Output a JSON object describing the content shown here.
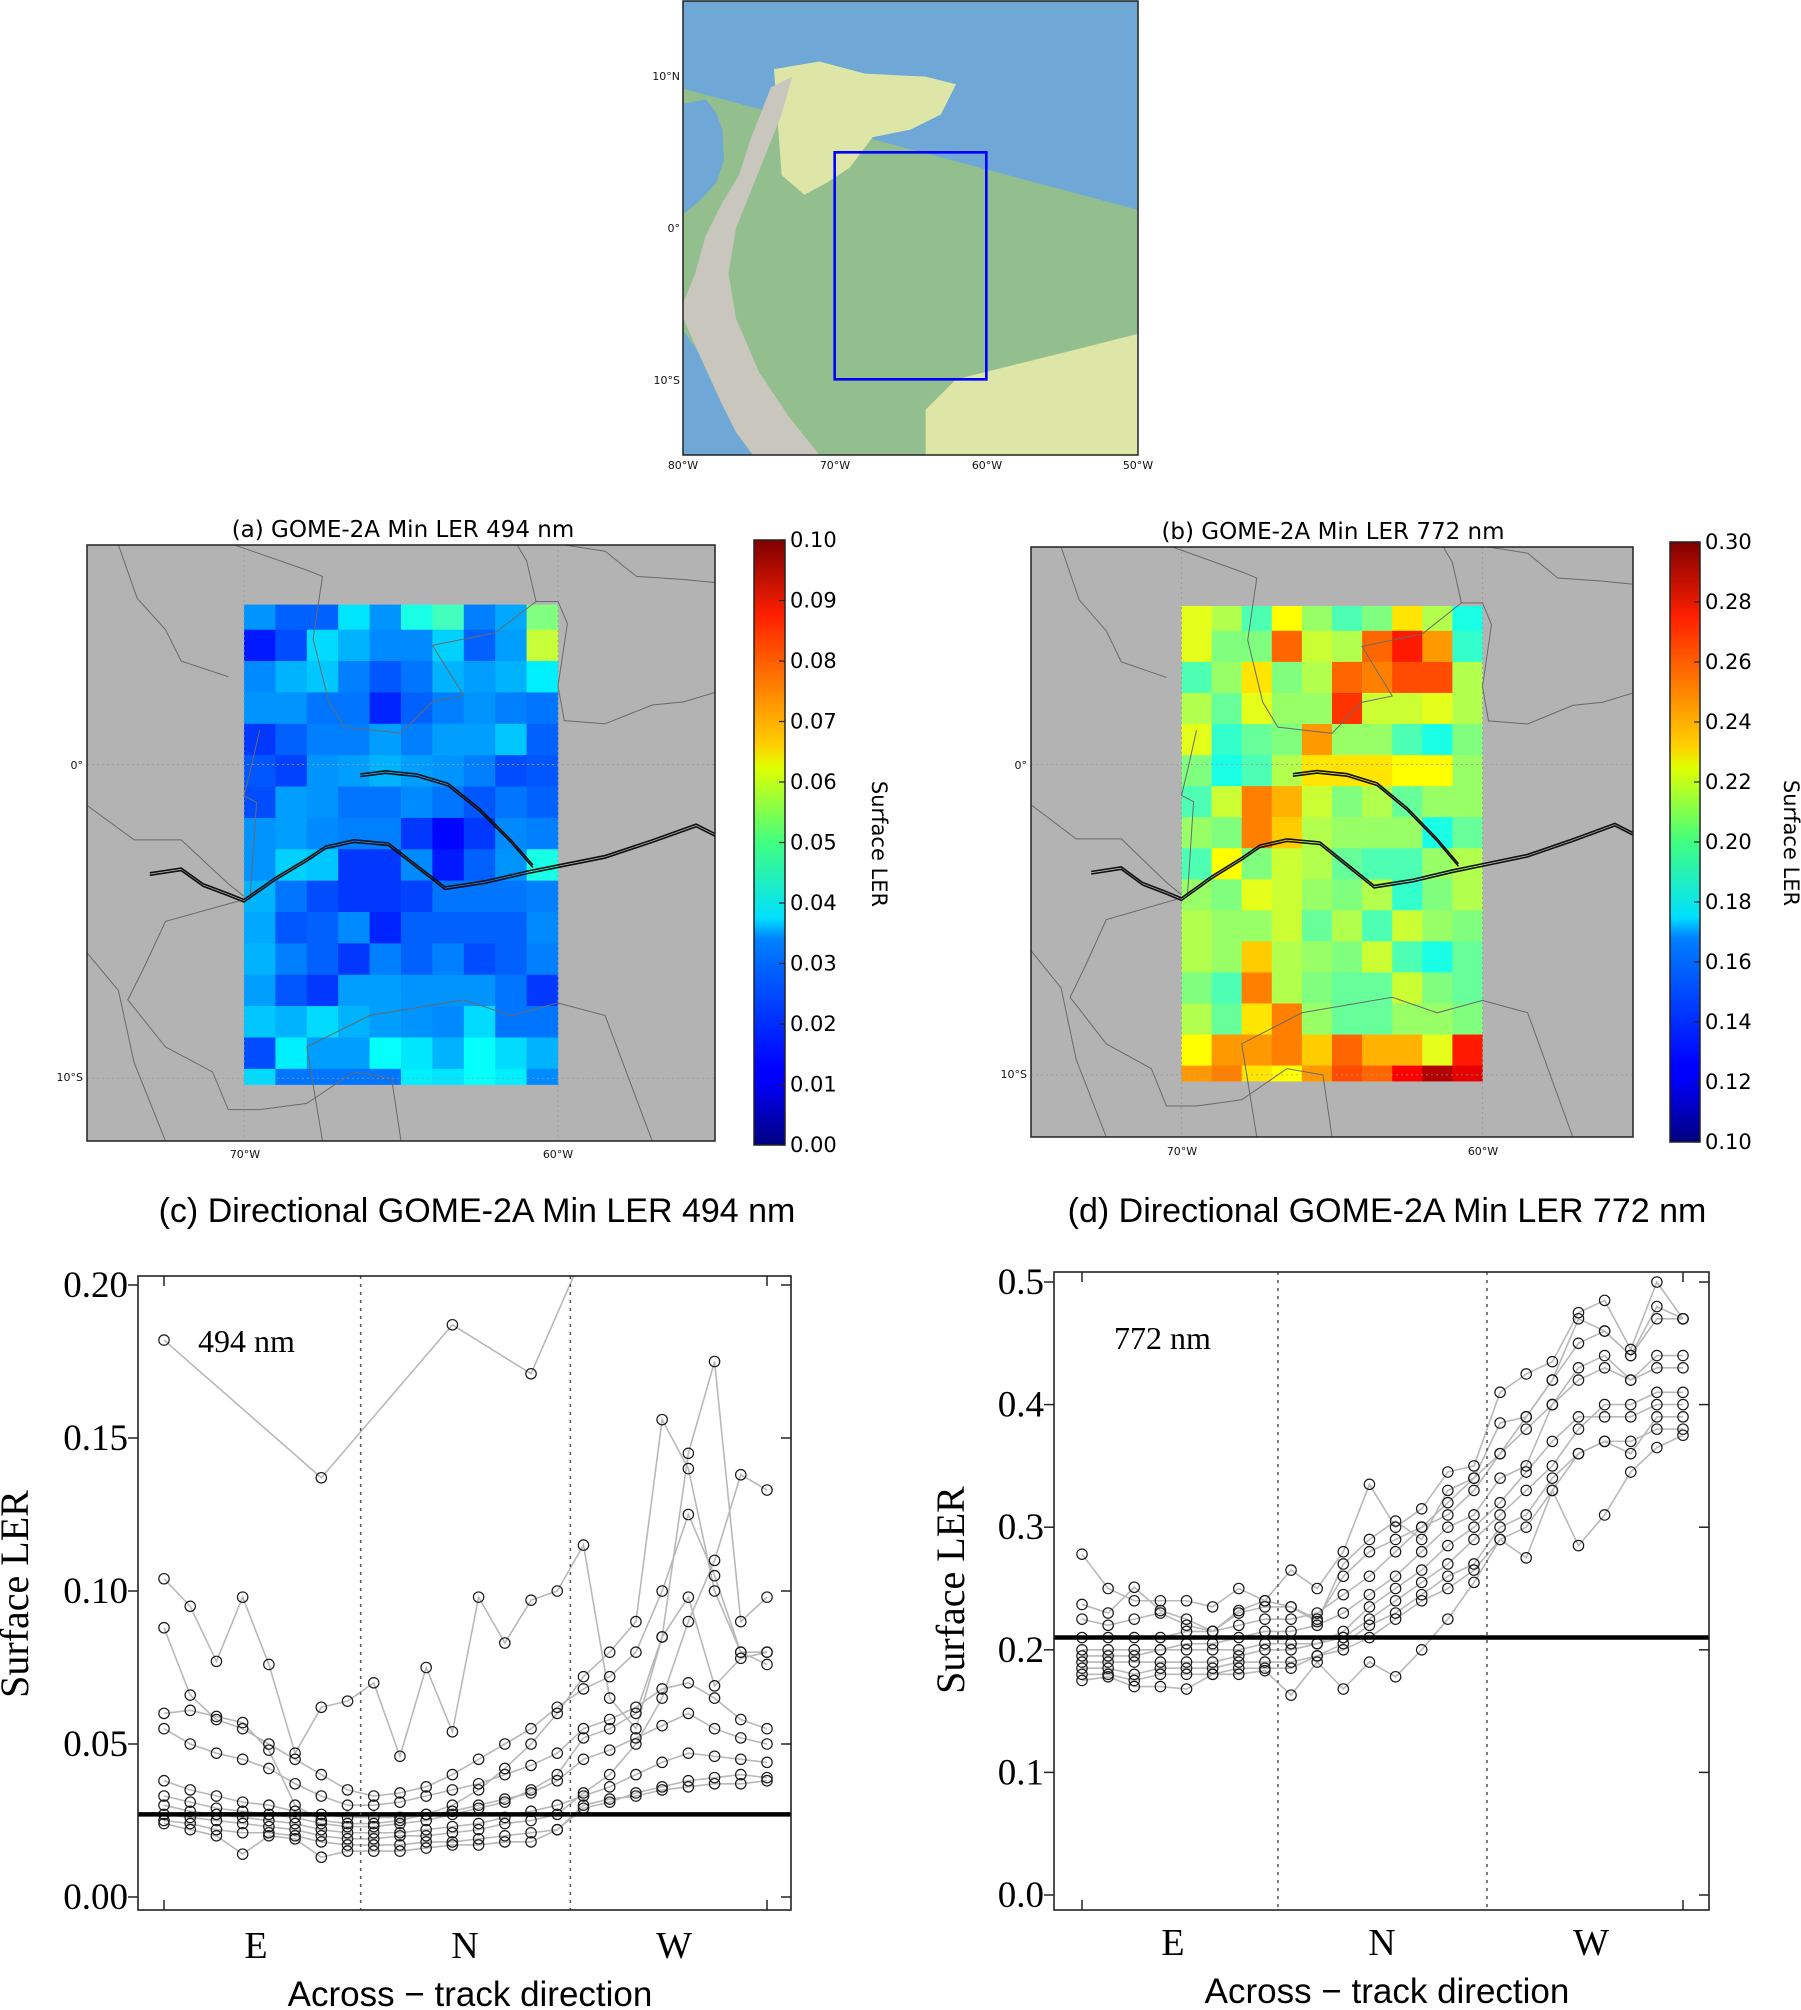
{
  "overview_map": {
    "lat_labels": [
      "10°N",
      "0°",
      "10°S"
    ],
    "lon_labels": [
      "80°W",
      "70°W",
      "60°W",
      "50°W"
    ],
    "extent": {
      "lon": [
        -80,
        -50
      ],
      "lat": [
        -15,
        15
      ]
    },
    "region_box": {
      "lon": [
        -70,
        -60
      ],
      "lat": [
        -10,
        5
      ]
    },
    "colors": {
      "ocean": "#6fa7d6",
      "lowland": "#93bf8f",
      "savanna": "#dde6a6",
      "andes": "#c9c6bd",
      "box": "#0000ff"
    }
  },
  "chart_data": [
    {
      "type": "heatmap",
      "id": "a",
      "title": "(a)  GOME-2A Min LER 494 nm",
      "colorbar_label": "Surface LER",
      "vmin": 0.0,
      "vmax": 0.1,
      "colorbar_ticks": [
        "0.00",
        "0.01",
        "0.02",
        "0.03",
        "0.04",
        "0.05",
        "0.06",
        "0.07",
        "0.08",
        "0.09",
        "0.10"
      ],
      "x_tick_labels": [
        "70°W",
        "60°W"
      ],
      "y_tick_labels": [
        "0°",
        "10°S"
      ],
      "extent": {
        "lon": [
          -75,
          -55
        ],
        "lat": [
          -12,
          7
        ]
      },
      "lon_edges": [
        -70,
        -69,
        -68,
        -67,
        -66,
        -65,
        -64,
        -63,
        -62,
        -61,
        -60
      ],
      "lat_edges": [
        5.1,
        4.3,
        3.3,
        2.3,
        1.3,
        0.3,
        -0.7,
        -1.7,
        -2.7,
        -3.7,
        -4.7,
        -5.7,
        -6.7,
        -7.7,
        -8.7,
        -9.7,
        -10.2
      ],
      "background": "#b3b3b3",
      "values": [
        [
          0.027,
          0.022,
          0.022,
          0.035,
          0.027,
          0.04,
          0.044,
          0.025,
          0.029,
          0.05
        ],
        [
          0.015,
          0.02,
          0.034,
          0.03,
          0.026,
          0.026,
          0.033,
          0.022,
          0.028,
          0.057
        ],
        [
          0.026,
          0.03,
          0.032,
          0.025,
          0.021,
          0.024,
          0.03,
          0.028,
          0.03,
          0.036
        ],
        [
          0.027,
          0.027,
          0.024,
          0.024,
          0.016,
          0.022,
          0.025,
          0.027,
          0.025,
          0.024
        ],
        [
          0.018,
          0.022,
          0.025,
          0.025,
          0.028,
          0.025,
          0.028,
          0.028,
          0.032,
          0.022
        ],
        [
          0.021,
          0.019,
          0.027,
          0.028,
          0.03,
          0.028,
          0.027,
          0.025,
          0.02,
          0.021
        ],
        [
          0.02,
          0.028,
          0.027,
          0.024,
          0.024,
          0.026,
          0.024,
          0.021,
          0.024,
          0.022
        ],
        [
          0.027,
          0.028,
          0.026,
          0.025,
          0.025,
          0.018,
          0.013,
          0.018,
          0.026,
          0.025
        ],
        [
          0.027,
          0.033,
          0.032,
          0.018,
          0.018,
          0.026,
          0.015,
          0.022,
          0.027,
          0.04
        ],
        [
          0.03,
          0.024,
          0.02,
          0.018,
          0.018,
          0.019,
          0.024,
          0.024,
          0.024,
          0.025
        ],
        [
          0.029,
          0.021,
          0.022,
          0.026,
          0.016,
          0.022,
          0.022,
          0.022,
          0.022,
          0.026
        ],
        [
          0.03,
          0.025,
          0.022,
          0.018,
          0.025,
          0.022,
          0.025,
          0.02,
          0.022,
          0.025
        ],
        [
          0.028,
          0.021,
          0.018,
          0.028,
          0.028,
          0.027,
          0.027,
          0.027,
          0.024,
          0.018
        ],
        [
          0.032,
          0.03,
          0.034,
          0.03,
          0.028,
          0.027,
          0.026,
          0.034,
          0.024,
          0.024
        ],
        [
          0.02,
          0.036,
          0.028,
          0.028,
          0.038,
          0.035,
          0.03,
          0.038,
          0.034,
          0.03
        ],
        [
          0.034,
          0.024,
          0.024,
          0.024,
          0.024,
          0.036,
          0.035,
          0.038,
          0.036,
          0.026
        ]
      ]
    },
    {
      "type": "heatmap",
      "id": "b",
      "title": "(b)  GOME-2A Min LER 772 nm",
      "colorbar_label": "Surface LER",
      "vmin": 0.1,
      "vmax": 0.3,
      "colorbar_ticks": [
        "0.10",
        "0.12",
        "0.14",
        "0.16",
        "0.18",
        "0.20",
        "0.22",
        "0.24",
        "0.26",
        "0.28",
        "0.30"
      ],
      "x_tick_labels": [
        "70°W",
        "60°W"
      ],
      "y_tick_labels": [
        "0°",
        "10°S"
      ],
      "extent": {
        "lon": [
          -75,
          -55
        ],
        "lat": [
          -12,
          7
        ]
      },
      "lon_edges": [
        -70,
        -69,
        -68,
        -67,
        -66,
        -65,
        -64,
        -63,
        -62,
        -61,
        -60
      ],
      "lat_edges": [
        5.1,
        4.3,
        3.3,
        2.3,
        1.3,
        0.3,
        -0.7,
        -1.7,
        -2.7,
        -3.7,
        -4.7,
        -5.7,
        -6.7,
        -7.7,
        -8.7,
        -9.7,
        -10.2
      ],
      "background": "#b3b3b3",
      "values": [
        [
          0.22,
          0.21,
          0.19,
          0.225,
          0.205,
          0.19,
          0.2,
          0.23,
          0.21,
          0.18
        ],
        [
          0.22,
          0.2,
          0.2,
          0.255,
          0.215,
          0.21,
          0.255,
          0.27,
          0.245,
          0.185
        ],
        [
          0.19,
          0.205,
          0.23,
          0.2,
          0.21,
          0.255,
          0.25,
          0.26,
          0.26,
          0.21
        ],
        [
          0.21,
          0.195,
          0.22,
          0.205,
          0.205,
          0.265,
          0.215,
          0.215,
          0.22,
          0.21
        ],
        [
          0.22,
          0.185,
          0.195,
          0.2,
          0.245,
          0.205,
          0.205,
          0.19,
          0.18,
          0.2
        ],
        [
          0.2,
          0.18,
          0.19,
          0.21,
          0.23,
          0.23,
          0.23,
          0.225,
          0.225,
          0.205
        ],
        [
          0.19,
          0.215,
          0.25,
          0.24,
          0.215,
          0.2,
          0.21,
          0.195,
          0.205,
          0.205
        ],
        [
          0.205,
          0.2,
          0.25,
          0.235,
          0.21,
          0.205,
          0.205,
          0.205,
          0.18,
          0.195
        ],
        [
          0.19,
          0.225,
          0.2,
          0.215,
          0.21,
          0.195,
          0.19,
          0.19,
          0.205,
          0.21
        ],
        [
          0.205,
          0.2,
          0.22,
          0.215,
          0.205,
          0.2,
          0.21,
          0.185,
          0.2,
          0.21
        ],
        [
          0.21,
          0.205,
          0.205,
          0.215,
          0.195,
          0.21,
          0.19,
          0.215,
          0.205,
          0.2
        ],
        [
          0.21,
          0.205,
          0.235,
          0.21,
          0.205,
          0.2,
          0.215,
          0.19,
          0.18,
          0.195
        ],
        [
          0.2,
          0.19,
          0.25,
          0.21,
          0.2,
          0.195,
          0.195,
          0.215,
          0.2,
          0.195
        ],
        [
          0.21,
          0.195,
          0.23,
          0.25,
          0.205,
          0.195,
          0.195,
          0.205,
          0.205,
          0.2
        ],
        [
          0.225,
          0.245,
          0.245,
          0.25,
          0.235,
          0.255,
          0.24,
          0.24,
          0.22,
          0.27
        ],
        [
          0.245,
          0.25,
          0.23,
          0.225,
          0.245,
          0.26,
          0.255,
          0.275,
          0.29,
          0.28
        ]
      ]
    },
    {
      "type": "line",
      "id": "c",
      "title": "(c) Directional GOME-2A Min LER 494 nm",
      "annotation": "494 nm",
      "ylabel": "Surface LER",
      "xlabel": "Across −  track direction",
      "direction_labels": [
        "E",
        "N",
        "W"
      ],
      "ylim": [
        0.0,
        0.2
      ],
      "yticks": [
        "0.00",
        "0.05",
        "0.10",
        "0.15",
        "0.20"
      ],
      "x": [
        1,
        2,
        3,
        4,
        5,
        6,
        7,
        8,
        9,
        10,
        11,
        12,
        13,
        14,
        15,
        16,
        17,
        18,
        19,
        20,
        21,
        22,
        23,
        24
      ],
      "dividers_after": [
        8,
        16
      ],
      "reference_line": 0.027,
      "series": [
        [
          0.182,
          null,
          null,
          null,
          null,
          null,
          0.137,
          null,
          null,
          null,
          null,
          0.187,
          null,
          null,
          0.171,
          null,
          null,
          0.23,
          null,
          null,
          null,
          null,
          null,
          null
        ],
        [
          0.03,
          0.028,
          0.027,
          0.026,
          0.025,
          0.024,
          0.022,
          0.021,
          0.021,
          0.021,
          0.022,
          0.023,
          0.024,
          0.026,
          0.028,
          0.03,
          0.033,
          0.036,
          0.04,
          0.044,
          0.047,
          0.046,
          0.045,
          0.044
        ],
        [
          0.025,
          0.024,
          0.022,
          0.021,
          0.021,
          0.02,
          0.018,
          0.017,
          0.017,
          0.017,
          0.018,
          0.018,
          0.019,
          0.02,
          0.021,
          0.022,
          0.029,
          0.031,
          0.034,
          0.036,
          0.038,
          0.039,
          0.04,
          0.039
        ],
        [
          0.038,
          0.035,
          0.033,
          0.031,
          0.03,
          0.028,
          0.027,
          0.026,
          0.026,
          0.026,
          0.027,
          0.028,
          0.03,
          0.032,
          0.034,
          0.038,
          0.045,
          0.048,
          0.052,
          0.056,
          0.06,
          0.055,
          0.052,
          0.05
        ],
        [
          0.055,
          0.05,
          0.047,
          0.045,
          0.042,
          0.037,
          0.033,
          0.03,
          0.03,
          0.031,
          0.033,
          0.035,
          0.037,
          0.04,
          0.043,
          0.047,
          0.055,
          0.058,
          0.062,
          0.068,
          0.07,
          0.065,
          0.058,
          0.055
        ],
        [
          0.088,
          0.066,
          0.058,
          0.055,
          0.05,
          0.045,
          0.04,
          0.035,
          0.033,
          0.034,
          0.036,
          0.04,
          0.045,
          0.05,
          0.055,
          0.062,
          0.068,
          0.072,
          0.08,
          0.1,
          0.125,
          0.105,
          0.08,
          0.076
        ],
        [
          0.027,
          0.026,
          0.025,
          0.024,
          0.023,
          0.022,
          0.02,
          0.019,
          0.019,
          0.02,
          0.02,
          0.021,
          0.022,
          0.024,
          0.025,
          0.027,
          0.034,
          0.04,
          0.05,
          0.065,
          0.09,
          0.11,
          0.138,
          0.133
        ],
        [
          0.033,
          0.031,
          0.029,
          0.028,
          0.027,
          0.026,
          0.024,
          0.023,
          0.023,
          0.024,
          0.025,
          0.027,
          0.029,
          0.031,
          0.035,
          0.04,
          0.052,
          0.055,
          0.06,
          0.085,
          0.145,
          0.175,
          0.09,
          0.098
        ],
        [
          0.06,
          0.061,
          0.059,
          0.057,
          0.048,
          0.03,
          0.025,
          0.024,
          0.024,
          0.025,
          0.027,
          0.03,
          0.035,
          0.042,
          0.05,
          0.06,
          0.072,
          0.08,
          0.09,
          0.156,
          0.14,
          0.1,
          0.08,
          0.08
        ],
        [
          0.024,
          0.022,
          0.02,
          0.014,
          0.02,
          0.019,
          0.013,
          0.015,
          0.015,
          0.015,
          0.016,
          0.017,
          0.017,
          0.018,
          0.018,
          0.022,
          0.03,
          0.032,
          0.033,
          0.035,
          0.036,
          0.037,
          0.037,
          0.038
        ],
        [
          0.104,
          0.095,
          0.077,
          0.098,
          0.076,
          0.047,
          0.062,
          0.064,
          0.07,
          0.046,
          0.075,
          0.054,
          0.098,
          0.083,
          0.097,
          0.1,
          0.115,
          0.065,
          0.055,
          0.085,
          0.098,
          0.069,
          0.078,
          0.08
        ]
      ]
    },
    {
      "type": "line",
      "id": "d",
      "title": "(d) Directional GOME-2A Min LER 772 nm",
      "annotation": "772 nm",
      "ylabel": "Surface LER",
      "xlabel": "Across −  track direction",
      "direction_labels": [
        "E",
        "N",
        "W"
      ],
      "ylim": [
        0.0,
        0.5
      ],
      "yticks": [
        "0.0",
        "0.1",
        "0.2",
        "0.3",
        "0.4",
        "0.5"
      ],
      "x": [
        1,
        2,
        3,
        4,
        5,
        6,
        7,
        8,
        9,
        10,
        11,
        12,
        13,
        14,
        15,
        16,
        17,
        18,
        19,
        20,
        21,
        22,
        23,
        24
      ],
      "dividers_after": [
        8,
        16
      ],
      "reference_line": 0.21,
      "series": [
        [
          0.278,
          0.25,
          0.24,
          0.24,
          0.24,
          0.235,
          0.25,
          0.24,
          0.265,
          0.25,
          0.28,
          0.335,
          0.3,
          0.315,
          0.345,
          0.35,
          0.41,
          0.425,
          0.435,
          0.475,
          0.485,
          0.445,
          0.5,
          0.47
        ],
        [
          0.19,
          0.19,
          0.19,
          0.19,
          0.19,
          0.19,
          0.195,
          0.2,
          0.2,
          0.205,
          0.21,
          0.225,
          0.24,
          0.255,
          0.27,
          0.29,
          0.31,
          0.33,
          0.35,
          0.38,
          0.4,
          0.4,
          0.41,
          0.41
        ],
        [
          0.18,
          0.18,
          0.175,
          0.18,
          0.18,
          0.18,
          0.185,
          0.185,
          0.185,
          0.195,
          0.2,
          0.21,
          0.225,
          0.24,
          0.25,
          0.265,
          0.29,
          0.3,
          0.33,
          0.36,
          0.37,
          0.37,
          0.38,
          0.38
        ],
        [
          0.2,
          0.2,
          0.2,
          0.2,
          0.205,
          0.205,
          0.21,
          0.215,
          0.215,
          0.22,
          0.23,
          0.245,
          0.26,
          0.28,
          0.3,
          0.31,
          0.34,
          0.35,
          0.4,
          0.43,
          0.44,
          0.42,
          0.44,
          0.44
        ],
        [
          0.21,
          0.21,
          0.21,
          0.21,
          0.215,
          0.215,
          0.22,
          0.225,
          0.225,
          0.23,
          0.245,
          0.26,
          0.28,
          0.3,
          0.32,
          0.34,
          0.36,
          0.39,
          0.42,
          0.45,
          0.46,
          0.44,
          0.47,
          0.47
        ],
        [
          0.175,
          0.178,
          0.17,
          0.17,
          0.168,
          0.18,
          0.18,
          0.183,
          0.163,
          0.19,
          0.168,
          0.19,
          0.178,
          0.2,
          0.225,
          0.255,
          0.29,
          0.275,
          0.33,
          0.285,
          0.31,
          0.345,
          0.365,
          0.375
        ],
        [
          0.195,
          0.195,
          0.195,
          0.2,
          0.2,
          0.2,
          0.2,
          0.205,
          0.205,
          0.205,
          0.215,
          0.235,
          0.25,
          0.265,
          0.285,
          0.3,
          0.32,
          0.345,
          0.37,
          0.39,
          0.39,
          0.39,
          0.4,
          0.4
        ],
        [
          0.225,
          0.22,
          0.225,
          0.23,
          0.22,
          0.215,
          0.23,
          0.235,
          0.235,
          0.225,
          0.26,
          0.28,
          0.29,
          0.3,
          0.31,
          0.33,
          0.36,
          0.38,
          0.4,
          0.42,
          0.43,
          0.42,
          0.43,
          0.43
        ],
        [
          0.185,
          0.185,
          0.18,
          0.185,
          0.185,
          0.185,
          0.19,
          0.19,
          0.19,
          0.195,
          0.205,
          0.22,
          0.23,
          0.245,
          0.26,
          0.27,
          0.3,
          0.31,
          0.34,
          0.36,
          0.37,
          0.36,
          0.39,
          0.39
        ],
        [
          0.237,
          0.23,
          0.251,
          0.232,
          0.225,
          0.215,
          0.232,
          0.24,
          0.235,
          0.223,
          0.27,
          0.29,
          0.305,
          0.29,
          0.33,
          0.34,
          0.385,
          0.39,
          0.42,
          0.47,
          0.46,
          0.44,
          0.48,
          0.47
        ]
      ]
    }
  ]
}
